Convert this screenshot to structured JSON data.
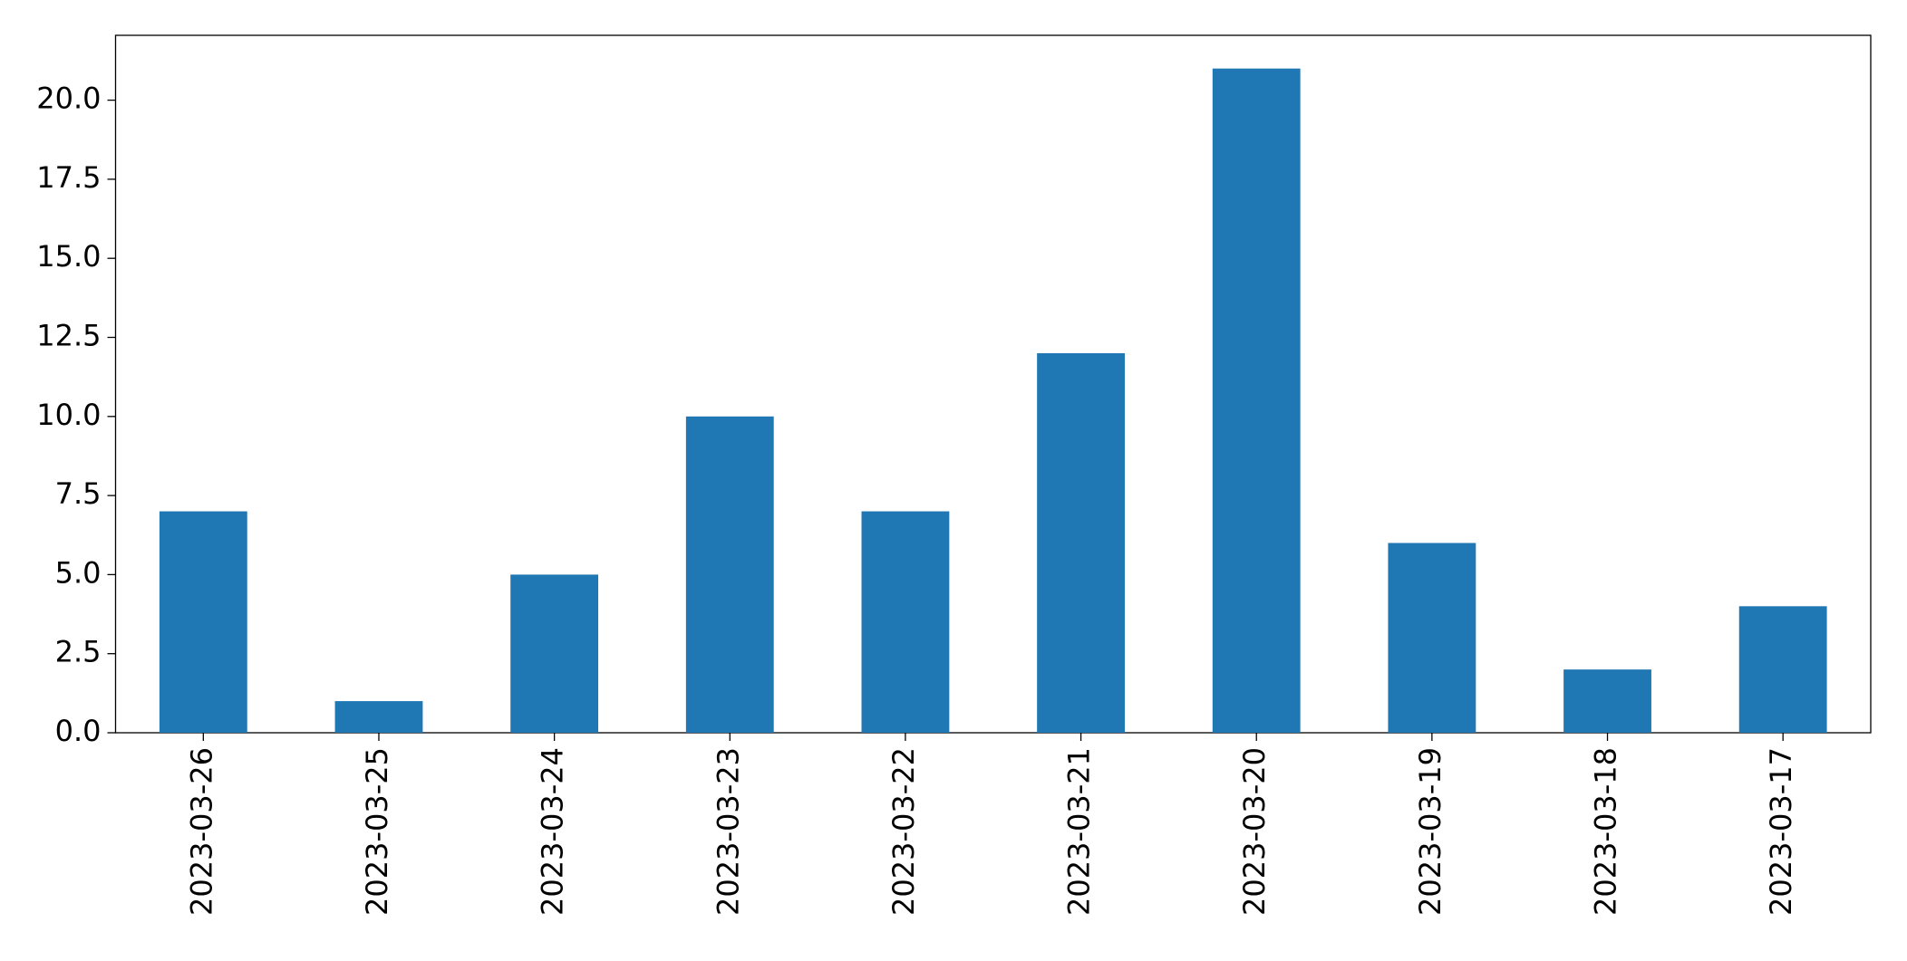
{
  "chart_data": {
    "type": "bar",
    "categories": [
      "2023-03-26",
      "2023-03-25",
      "2023-03-24",
      "2023-03-23",
      "2023-03-22",
      "2023-03-21",
      "2023-03-20",
      "2023-03-19",
      "2023-03-18",
      "2023-03-17"
    ],
    "values": [
      7,
      1,
      5,
      10,
      7,
      12,
      21,
      6,
      2,
      4
    ],
    "color": "#1f77b4",
    "ylim": [
      0,
      22.05
    ],
    "yticks": [
      {
        "value": 0,
        "label": "0.0"
      },
      2.5,
      {
        "value": 5,
        "label": "5.0"
      },
      7.5,
      {
        "value": 10,
        "label": "10.0"
      },
      12.5,
      {
        "value": 15,
        "label": "15.0"
      },
      17.5,
      {
        "value": 20,
        "label": "20.0"
      }
    ],
    "grid": false
  }
}
